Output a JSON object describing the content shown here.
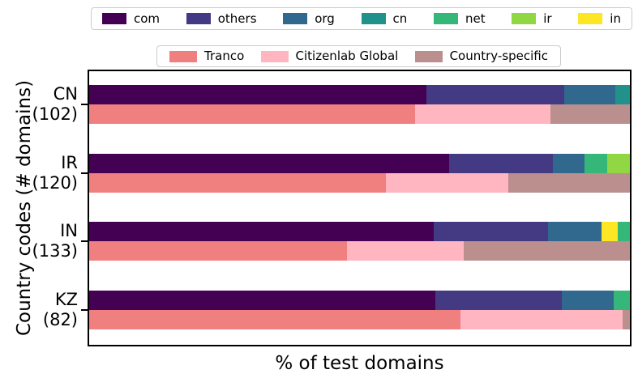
{
  "figure": {
    "xlabel": "% of test domains",
    "ylabel": "Country codes (# domains)",
    "background": "#ffffff",
    "spine_color": "#000000"
  },
  "tld_legend": [
    {
      "label": "com",
      "color": "#440154"
    },
    {
      "label": "others",
      "color": "#443983"
    },
    {
      "label": "org",
      "color": "#31688e"
    },
    {
      "label": "cn",
      "color": "#21918c"
    },
    {
      "label": "net",
      "color": "#35b779"
    },
    {
      "label": "ir",
      "color": "#90d743"
    },
    {
      "label": "in",
      "color": "#fde725"
    }
  ],
  "source_legend": [
    {
      "label": "Tranco",
      "color": "#f08080"
    },
    {
      "label": "Citizenlab Global",
      "color": "#ffb6c1"
    },
    {
      "label": "Country-specific",
      "color": "#bc8f8f"
    }
  ],
  "chart_data": {
    "type": "bar",
    "orientation": "horizontal",
    "stacked": true,
    "title": "",
    "xlabel": "% of test domains",
    "ylabel": "Country codes (# domains)",
    "xlim": [
      0,
      100
    ],
    "grid": false,
    "legend_position": "two boxed legends above plot",
    "groups": [
      {
        "code": "CN",
        "num_domains": 102,
        "label_line1": "CN",
        "label_line2": "(102)",
        "tld_segments": [
          {
            "name": "com",
            "pct": 62.3
          },
          {
            "name": "others",
            "pct": 25.6
          },
          {
            "name": "org",
            "pct": 9.4
          },
          {
            "name": "cn",
            "pct": 2.7
          }
        ],
        "source_segments": [
          {
            "name": "Tranco",
            "pct": 60.2
          },
          {
            "name": "Citizenlab Global",
            "pct": 25.1
          },
          {
            "name": "Country-specific",
            "pct": 14.7
          }
        ]
      },
      {
        "code": "IR",
        "num_domains": 120,
        "label_line1": "IR",
        "label_line2": "(120)",
        "tld_segments": [
          {
            "name": "com",
            "pct": 66.6
          },
          {
            "name": "others",
            "pct": 19.2
          },
          {
            "name": "org",
            "pct": 5.8
          },
          {
            "name": "net",
            "pct": 4.2
          },
          {
            "name": "ir",
            "pct": 4.2
          }
        ],
        "source_segments": [
          {
            "name": "Tranco",
            "pct": 54.8
          },
          {
            "name": "Citizenlab Global",
            "pct": 22.7
          },
          {
            "name": "Country-specific",
            "pct": 22.5
          }
        ]
      },
      {
        "code": "IN",
        "num_domains": 133,
        "label_line1": "IN",
        "label_line2": "(133)",
        "tld_segments": [
          {
            "name": "com",
            "pct": 63.7
          },
          {
            "name": "others",
            "pct": 21.2
          },
          {
            "name": "org",
            "pct": 9.8
          },
          {
            "name": "in",
            "pct": 3.1
          },
          {
            "name": "net",
            "pct": 2.2
          }
        ],
        "source_segments": [
          {
            "name": "Tranco",
            "pct": 47.7
          },
          {
            "name": "Citizenlab Global",
            "pct": 21.5
          },
          {
            "name": "Country-specific",
            "pct": 30.8
          }
        ]
      },
      {
        "code": "KZ",
        "num_domains": 82,
        "label_line1": "KZ",
        "label_line2": "(82)",
        "tld_segments": [
          {
            "name": "com",
            "pct": 64.0
          },
          {
            "name": "others",
            "pct": 23.4
          },
          {
            "name": "org",
            "pct": 9.6
          },
          {
            "name": "net",
            "pct": 3.0
          }
        ],
        "source_segments": [
          {
            "name": "Tranco",
            "pct": 68.7
          },
          {
            "name": "Citizenlab Global",
            "pct": 29.9
          },
          {
            "name": "Country-specific",
            "pct": 1.4
          }
        ]
      }
    ]
  }
}
